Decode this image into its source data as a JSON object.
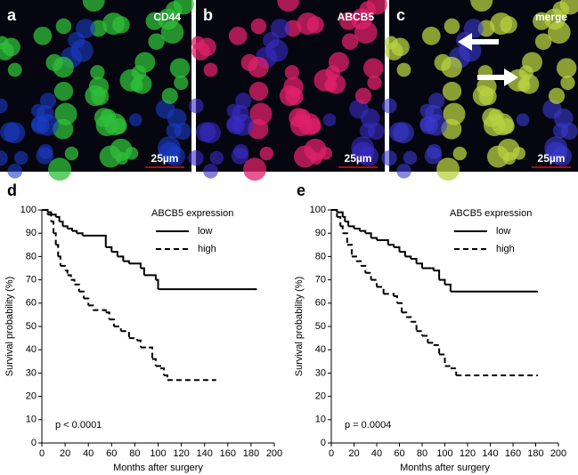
{
  "panels": [
    {
      "letter": "a",
      "label": "CD44",
      "scale": "25µm"
    },
    {
      "letter": "b",
      "label": "ABCB5",
      "scale": "25µm"
    },
    {
      "letter": "c",
      "label": "merge",
      "scale": "25µm"
    }
  ],
  "chart_data": [
    {
      "type": "line",
      "step": true,
      "letter": "d",
      "legend_title": "ABCB5 expression",
      "annotation": "p < 0.0001",
      "x_label": "Months after surgery",
      "y_label": "Survival probability (%)",
      "xlim": [
        0,
        200
      ],
      "ylim": [
        0,
        100
      ],
      "xticks": [
        0,
        20,
        40,
        60,
        80,
        100,
        120,
        140,
        160,
        180,
        200
      ],
      "yticks": [
        0,
        10,
        20,
        30,
        40,
        50,
        60,
        70,
        80,
        90,
        100
      ],
      "series": [
        {
          "name": "low",
          "color": "#000000",
          "dashed": false,
          "x": [
            0,
            5,
            8,
            12,
            15,
            18,
            22,
            26,
            30,
            35,
            50,
            55,
            60,
            65,
            70,
            75,
            82,
            85,
            88,
            95,
            98,
            100,
            185
          ],
          "values": [
            100,
            99,
            98,
            97,
            95,
            93,
            92,
            91,
            90,
            89,
            89,
            84,
            82,
            80,
            78,
            77,
            77,
            75,
            72,
            72,
            70,
            66,
            66
          ]
        },
        {
          "name": "high",
          "color": "#000000",
          "dashed": true,
          "x": [
            0,
            5,
            8,
            10,
            12,
            14,
            16,
            20,
            22,
            25,
            28,
            32,
            36,
            40,
            44,
            55,
            58,
            62,
            68,
            75,
            82,
            85,
            92,
            95,
            98,
            102,
            105,
            108,
            150
          ],
          "values": [
            100,
            98,
            95,
            90,
            85,
            80,
            76,
            74,
            72,
            70,
            68,
            65,
            62,
            59,
            57,
            56,
            53,
            50,
            48,
            45,
            44,
            41,
            41,
            36,
            33,
            32,
            29,
            27,
            27
          ]
        }
      ]
    },
    {
      "type": "line",
      "step": true,
      "letter": "e",
      "legend_title": "ABCB5 expression",
      "annotation": "p = 0.0004",
      "x_label": "Months after surgery",
      "y_label": "Survival probability (%)",
      "xlim": [
        0,
        200
      ],
      "ylim": [
        0,
        100
      ],
      "xticks": [
        0,
        20,
        40,
        60,
        80,
        100,
        120,
        140,
        160,
        180,
        200
      ],
      "yticks": [
        0,
        10,
        20,
        30,
        40,
        50,
        60,
        70,
        80,
        90,
        100
      ],
      "series": [
        {
          "name": "low",
          "color": "#000000",
          "dashed": false,
          "x": [
            0,
            5,
            10,
            12,
            15,
            20,
            25,
            30,
            35,
            40,
            50,
            55,
            60,
            65,
            70,
            75,
            80,
            88,
            90,
            95,
            100,
            105,
            182
          ],
          "values": [
            100,
            99,
            97,
            95,
            93,
            92,
            91,
            90,
            88,
            87,
            85,
            84,
            82,
            80,
            79,
            77,
            75,
            75,
            74,
            70,
            68,
            65,
            65
          ]
        },
        {
          "name": "high",
          "color": "#000000",
          "dashed": true,
          "x": [
            0,
            5,
            8,
            10,
            14,
            18,
            22,
            26,
            30,
            35,
            40,
            46,
            55,
            58,
            62,
            66,
            70,
            75,
            80,
            85,
            90,
            95,
            100,
            105,
            110,
            182
          ],
          "values": [
            100,
            97,
            93,
            90,
            85,
            80,
            78,
            76,
            73,
            70,
            67,
            64,
            63,
            60,
            56,
            54,
            52,
            48,
            46,
            43,
            42,
            38,
            33,
            32,
            29,
            29
          ]
        }
      ]
    }
  ]
}
